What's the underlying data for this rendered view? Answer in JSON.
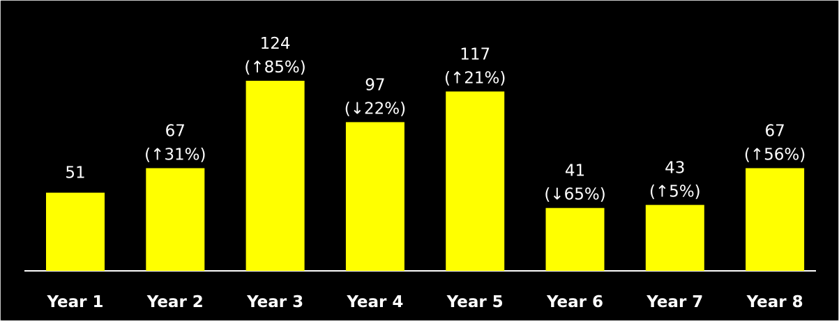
{
  "chart_data": {
    "type": "bar",
    "categories": [
      "Year 1",
      "Year 2",
      "Year 3",
      "Year 4",
      "Year 5",
      "Year 6",
      "Year 7",
      "Year 8"
    ],
    "values": [
      51,
      67,
      124,
      97,
      117,
      41,
      43,
      67
    ],
    "data_labels": [
      "51",
      "67",
      "124",
      "97",
      "117",
      "41",
      "43",
      "67"
    ],
    "change_labels": [
      "",
      "(↑31%)",
      "(↑85%)",
      "(↓22%)",
      "(↑21%)",
      "(↓65%)",
      "(↑5%)",
      "(↑56%)"
    ],
    "ylim": [
      0,
      124
    ],
    "grid": false,
    "legend": "none",
    "colors": {
      "background": "#000000",
      "bar": "#ffff00",
      "text": "#ffffff",
      "axis": "#ffffff"
    }
  }
}
